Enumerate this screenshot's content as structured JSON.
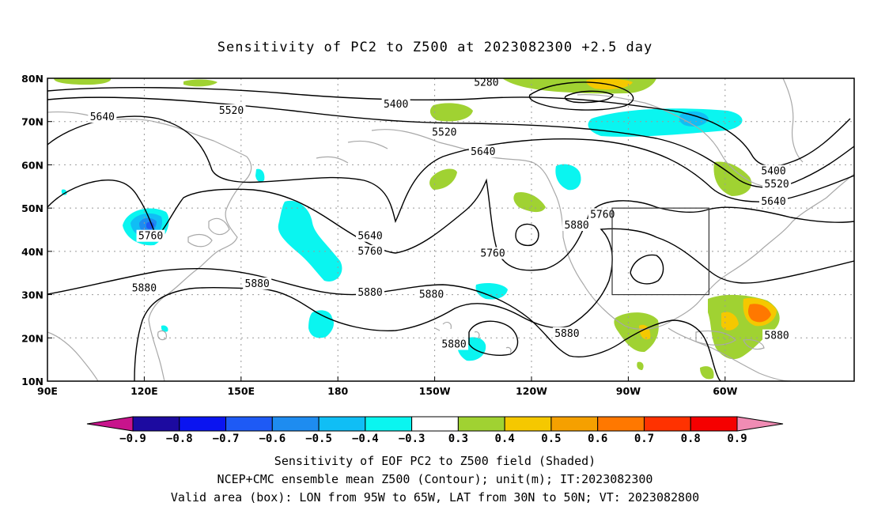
{
  "title": "Sensitivity of PC2 to Z500 at 2023082300 +2.5 day",
  "caption": {
    "line1": "Sensitivity of EOF PC2 to Z500 field (Shaded)",
    "line2": "NCEP+CMC ensemble mean Z500 (Contour); unit(m); IT:2023082300",
    "line3": "Valid area (box): LON from 95W to 65W, LAT from 30N to 50N; VT: 2023082800"
  },
  "map": {
    "lon_range": [
      90,
      340
    ],
    "lat_range": [
      10,
      80
    ],
    "lat_labels": [
      {
        "lat": 80,
        "text": "80N"
      },
      {
        "lat": 70,
        "text": "70N"
      },
      {
        "lat": 60,
        "text": "60N"
      },
      {
        "lat": 50,
        "text": "50N"
      },
      {
        "lat": 40,
        "text": "40N"
      },
      {
        "lat": 30,
        "text": "30N"
      },
      {
        "lat": 20,
        "text": "20N"
      },
      {
        "lat": 10,
        "text": "10N"
      }
    ],
    "lon_labels": [
      {
        "lon": 90,
        "text": "90E"
      },
      {
        "lon": 120,
        "text": "120E"
      },
      {
        "lon": 150,
        "text": "150E"
      },
      {
        "lon": 180,
        "text": "180"
      },
      {
        "lon": 210,
        "text": "150W"
      },
      {
        "lon": 240,
        "text": "120W"
      },
      {
        "lon": 270,
        "text": "90W"
      },
      {
        "lon": 300,
        "text": "60W"
      }
    ],
    "valid_box": {
      "lon_min": 265,
      "lon_max": 295,
      "lat_min": 30,
      "lat_max": 50
    },
    "contour_labels": [
      {
        "text": "5640",
        "lon": 107,
        "lat": 71
      },
      {
        "text": "5520",
        "lon": 147,
        "lat": 72.5
      },
      {
        "text": "5400",
        "lon": 198,
        "lat": 74
      },
      {
        "text": "5520",
        "lon": 213,
        "lat": 67.5
      },
      {
        "text": "5640",
        "lon": 225,
        "lat": 63
      },
      {
        "text": "5280",
        "lon": 226,
        "lat": 79
      },
      {
        "text": "5400",
        "lon": 315,
        "lat": 58.5
      },
      {
        "text": "5520",
        "lon": 316,
        "lat": 55.5
      },
      {
        "text": "5640",
        "lon": 315,
        "lat": 51.5
      },
      {
        "text": "5760",
        "lon": 262,
        "lat": 48.5
      },
      {
        "text": "5880",
        "lon": 254,
        "lat": 46
      },
      {
        "text": "5760",
        "lon": 122,
        "lat": 43.5
      },
      {
        "text": "5640",
        "lon": 190,
        "lat": 43.5
      },
      {
        "text": "5760",
        "lon": 190,
        "lat": 40
      },
      {
        "text": "5760",
        "lon": 228,
        "lat": 39.5
      },
      {
        "text": "5880",
        "lon": 155,
        "lat": 32.5
      },
      {
        "text": "5880",
        "lon": 120,
        "lat": 31.5
      },
      {
        "text": "5880",
        "lon": 190,
        "lat": 30.5
      },
      {
        "text": "5880",
        "lon": 209,
        "lat": 30
      },
      {
        "text": "5880",
        "lon": 216,
        "lat": 18.5
      },
      {
        "text": "5880",
        "lon": 251,
        "lat": 21
      },
      {
        "text": "5880",
        "lon": 316,
        "lat": 20.5
      }
    ]
  },
  "colorbar": {
    "labels": [
      "−0.9",
      "−0.8",
      "−0.7",
      "−0.6",
      "−0.5",
      "−0.4",
      "−0.3",
      "0.3",
      "0.4",
      "0.5",
      "0.6",
      "0.7",
      "0.8",
      "0.9"
    ],
    "colors": [
      "#1c0aa0",
      "#0a14f0",
      "#1e5af5",
      "#1e8cf0",
      "#10bef5",
      "#0af5f0",
      "#ffffff",
      "#a0d232",
      "#f5c800",
      "#f5a000",
      "#ff7800",
      "#ff3200",
      "#f50000"
    ],
    "low_arrow_color": "#c8148c",
    "high_arrow_color": "#f08cb4"
  }
}
